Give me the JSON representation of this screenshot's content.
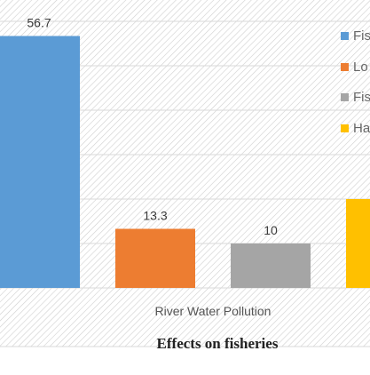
{
  "chart_data": {
    "type": "bar",
    "title": "Effects on fisheries",
    "xlabel": "",
    "ylabel": "",
    "categories": [
      "River Water Pollution"
    ],
    "series": [
      {
        "name": "Fis",
        "values": [
          56.7
        ],
        "color": "#5b9bd5"
      },
      {
        "name": "Lo",
        "values": [
          13.3
        ],
        "color": "#ed7d31"
      },
      {
        "name": "Fis",
        "values": [
          10
        ],
        "color": "#a5a5a5"
      },
      {
        "name": "Ha",
        "values": [
          20
        ],
        "color": "#ffc000"
      }
    ],
    "data_labels": [
      "56.7",
      "13.3",
      "10",
      ""
    ],
    "ylim": [
      0,
      60
    ],
    "grid": true,
    "legend_placement": "right",
    "colors": {
      "plot_border": "#d9d9d9",
      "hatch": "#cccccc",
      "gridline": "#d9d9d9"
    }
  }
}
